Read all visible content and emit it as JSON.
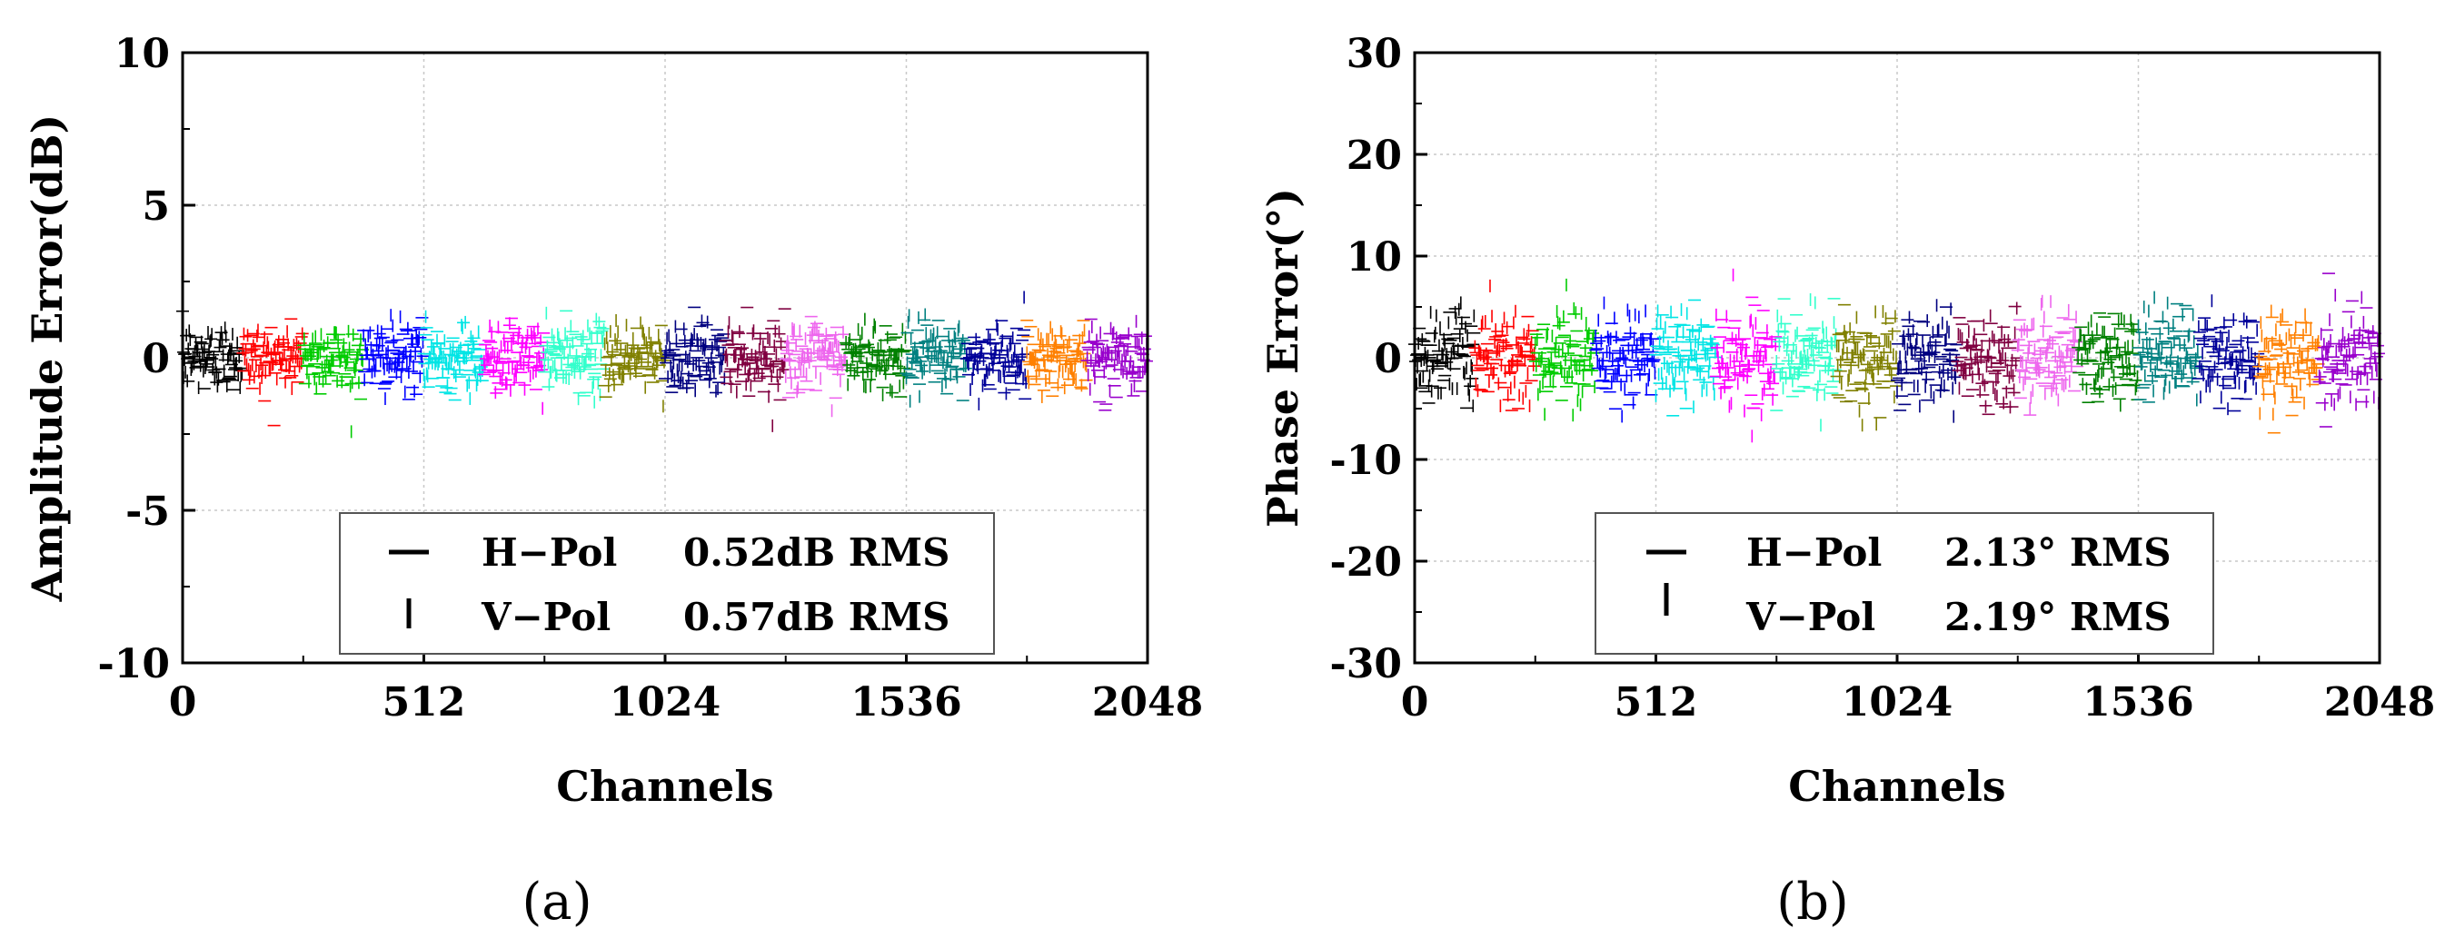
{
  "chart_data": [
    {
      "type": "scatter",
      "panel_label": "(a)",
      "xlabel": "Channels",
      "ylabel": "Amplitude Error(dB)",
      "xlim": [
        0,
        2048
      ],
      "ylim": [
        -10,
        10
      ],
      "xticks": [
        "0",
        "512",
        "1024",
        "1536",
        "2048"
      ],
      "xtick_values": [
        0,
        512,
        1024,
        1536,
        2048
      ],
      "yticks": [
        "10",
        "5",
        "0",
        "-5",
        "-10"
      ],
      "ytick_values": [
        10,
        5,
        0,
        -5,
        -10
      ],
      "grid": true,
      "legend_position": "bottom-center",
      "legend": [
        {
          "marker": "horizontal-dash",
          "name": "H−Pol",
          "rms": "0.52dB RMS"
        },
        {
          "marker": "vertical-dash",
          "name": "V−Pol",
          "rms": "0.57dB RMS"
        }
      ],
      "series_spread": 0.55,
      "group_colors": [
        "#000000",
        "#ff0000",
        "#00cc00",
        "#0000ff",
        "#00e5e5",
        "#ff00ff",
        "#33ffcc",
        "#808000",
        "#000080",
        "#800040",
        "#ee66ee",
        "#008000",
        "#008080",
        "#000099",
        "#ff8000",
        "#9900cc"
      ]
    },
    {
      "type": "scatter",
      "panel_label": "(b)",
      "xlabel": "Channels",
      "ylabel": "Phase Error(°)",
      "xlim": [
        0,
        2048
      ],
      "ylim": [
        -30,
        30
      ],
      "xticks": [
        "0",
        "512",
        "1024",
        "1536",
        "2048"
      ],
      "xtick_values": [
        0,
        512,
        1024,
        1536,
        2048
      ],
      "yticks": [
        "30",
        "20",
        "10",
        "0",
        "-10",
        "-20",
        "-30"
      ],
      "ytick_values": [
        30,
        20,
        10,
        0,
        -10,
        -20,
        -30
      ],
      "grid": true,
      "legend_position": "bottom-center",
      "legend": [
        {
          "marker": "horizontal-dash",
          "name": "H−Pol",
          "rms": "2.13° RMS"
        },
        {
          "marker": "vertical-dash",
          "name": "V−Pol",
          "rms": "2.19° RMS"
        }
      ],
      "series_spread": 2.2,
      "group_colors": [
        "#000000",
        "#ff0000",
        "#00cc00",
        "#0000ff",
        "#00e5e5",
        "#ff00ff",
        "#33ffcc",
        "#808000",
        "#000080",
        "#800040",
        "#ee66ee",
        "#008000",
        "#008080",
        "#000099",
        "#ff8000",
        "#9900cc"
      ]
    }
  ]
}
